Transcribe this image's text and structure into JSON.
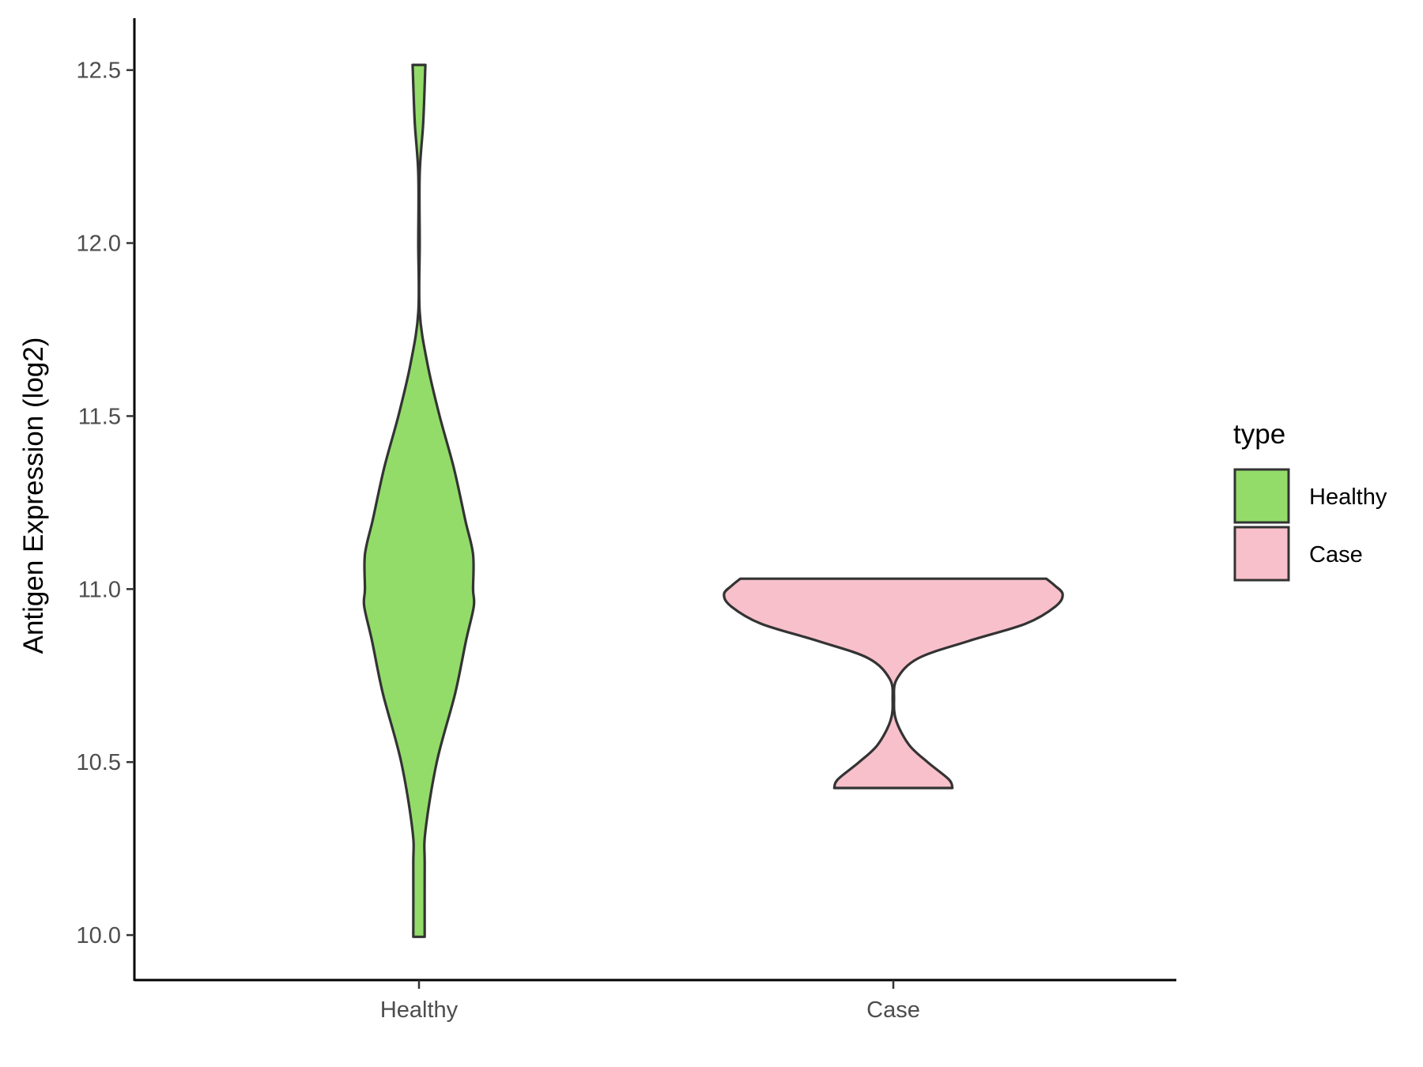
{
  "chart_data": {
    "type": "violin",
    "title": "",
    "xlabel": "",
    "ylabel": "Antigen Expression (log2)",
    "ylim": [
      9.87,
      12.65
    ],
    "yticks": [
      "10.0",
      "10.5",
      "11.0",
      "11.5",
      "12.0",
      "12.5"
    ],
    "grid": false,
    "legend": {
      "title": "type",
      "position": "right",
      "entries": [
        {
          "label": "Healthy",
          "color": "#93DC6A"
        },
        {
          "label": "Case",
          "color": "#F8C0CB"
        }
      ]
    },
    "categories": [
      "Healthy",
      "Case"
    ],
    "series": [
      {
        "name": "Healthy",
        "color": "#93DC6A",
        "min": 9.995,
        "max": 12.515,
        "density": [
          [
            9.995,
            0.08
          ],
          [
            10.2,
            0.08
          ],
          [
            10.3,
            0.09
          ],
          [
            10.5,
            0.25
          ],
          [
            10.7,
            0.51
          ],
          [
            10.85,
            0.66
          ],
          [
            10.95,
            0.77
          ],
          [
            11.0,
            0.76
          ],
          [
            11.1,
            0.76
          ],
          [
            11.2,
            0.65
          ],
          [
            11.35,
            0.49
          ],
          [
            11.5,
            0.29
          ],
          [
            11.65,
            0.12
          ],
          [
            11.8,
            0.01
          ],
          [
            12.0,
            0.01
          ],
          [
            12.2,
            0.01
          ],
          [
            12.35,
            0.06
          ],
          [
            12.515,
            0.09
          ]
        ]
      },
      {
        "name": "Case",
        "color": "#F8C0CB",
        "min": 10.425,
        "max": 11.03,
        "density": [
          [
            10.425,
            0.83
          ],
          [
            10.45,
            0.78
          ],
          [
            10.5,
            0.48
          ],
          [
            10.55,
            0.22
          ],
          [
            10.62,
            0.04
          ],
          [
            10.68,
            0.01
          ],
          [
            10.74,
            0.05
          ],
          [
            10.8,
            0.35
          ],
          [
            10.85,
            1.06
          ],
          [
            10.9,
            1.86
          ],
          [
            10.95,
            2.28
          ],
          [
            10.985,
            2.38
          ],
          [
            11.01,
            2.27
          ],
          [
            11.03,
            2.15
          ]
        ]
      }
    ],
    "outline_color": "#333333",
    "axis_color": "#000000"
  }
}
